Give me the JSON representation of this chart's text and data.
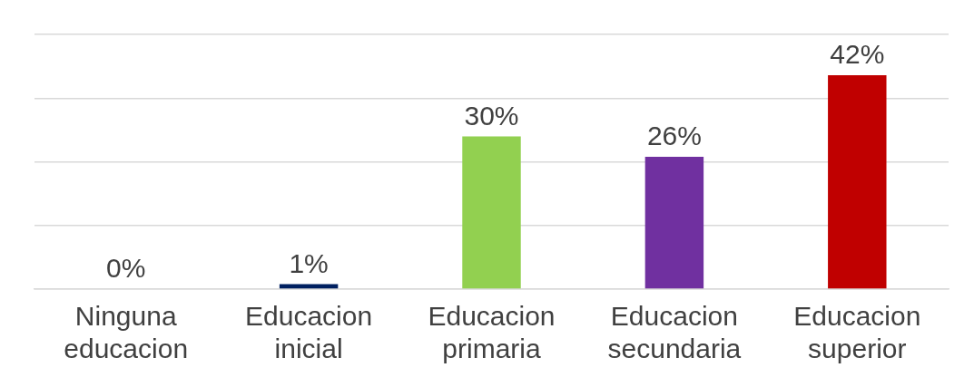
{
  "chart_data": {
    "type": "bar",
    "categories": [
      "Ninguna educacion",
      "Educacion inicial",
      "Educacion primaria",
      "Educacion secundaria",
      "Educacion superior"
    ],
    "values": [
      0,
      1,
      30,
      26,
      42
    ],
    "value_labels": [
      "0%",
      "1%",
      "30%",
      "26%",
      "42%"
    ],
    "colors": [
      "#002060",
      "#002060",
      "#92d050",
      "#7030a0",
      "#c00000"
    ],
    "tick_labels": "x",
    "grid": "y",
    "legend": false
  }
}
